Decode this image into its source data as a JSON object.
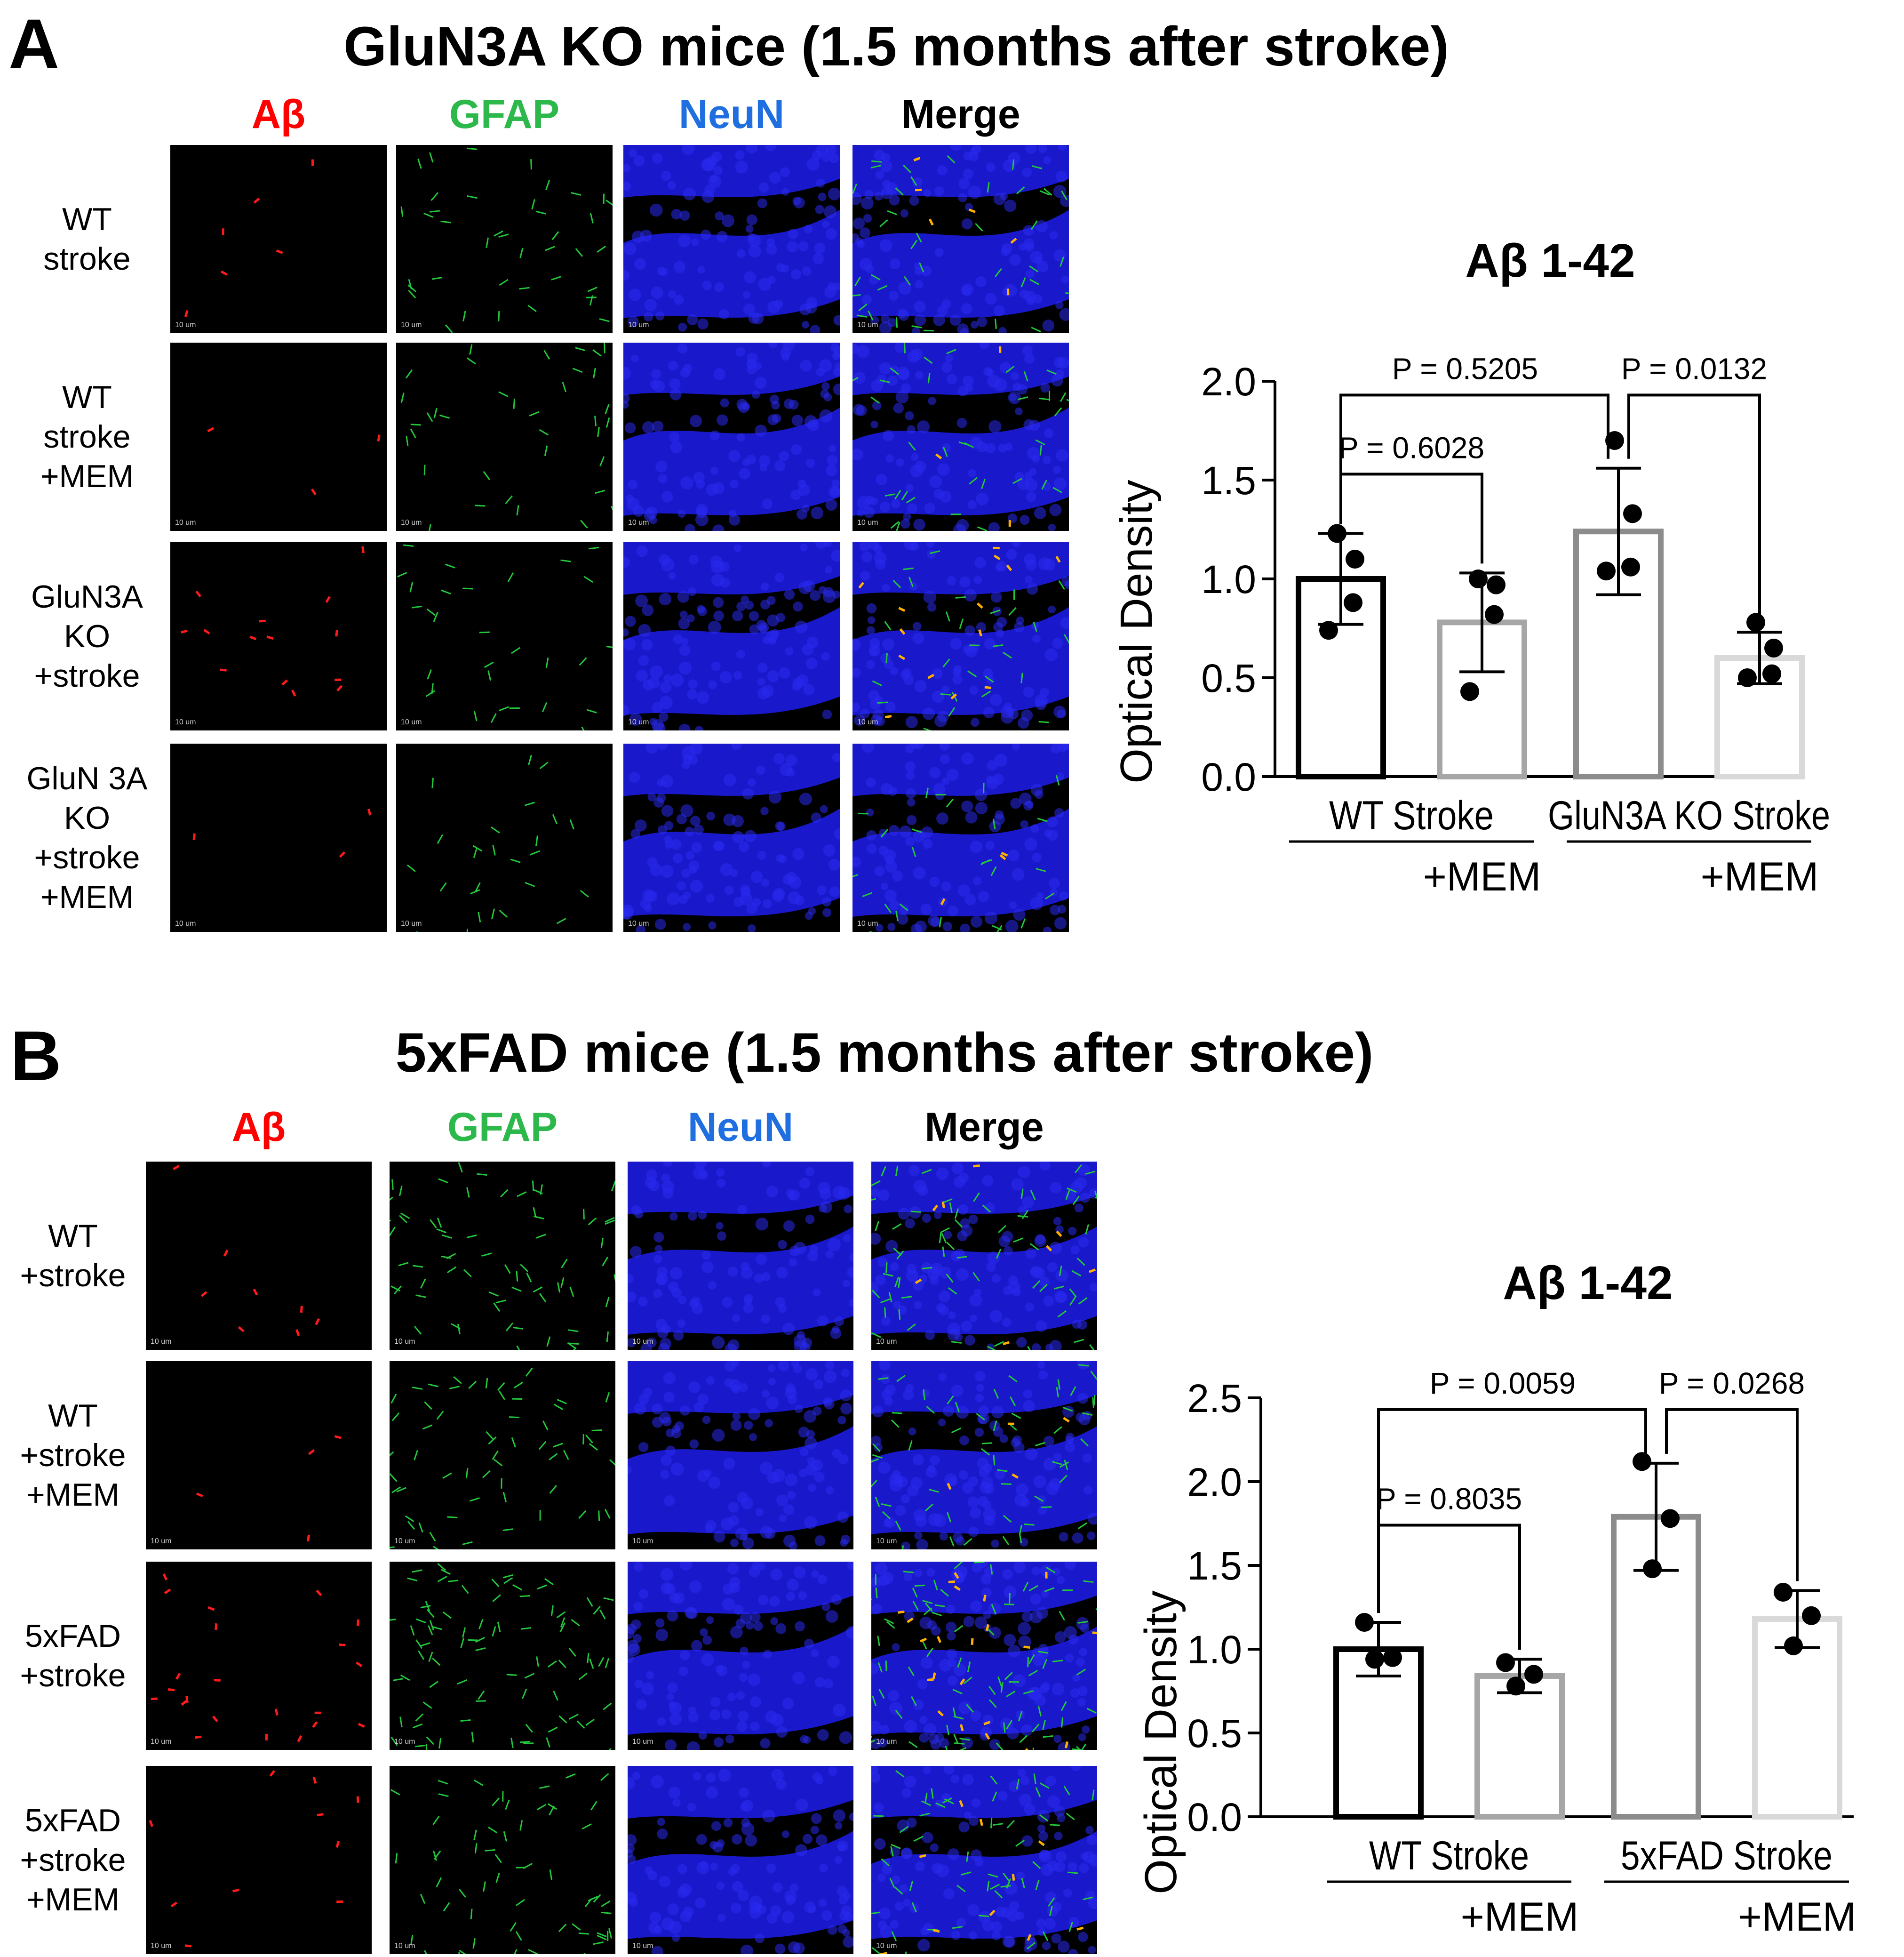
{
  "panels": [
    {
      "letter": "A",
      "title": "GluN3A KO mice (1.5 months after stroke)",
      "columns": [
        "Aβ",
        "GFAP",
        "NeuN",
        "Merge"
      ],
      "column_colors": [
        "#ff0000",
        "#2db84b",
        "#1f6fe0",
        "#000000"
      ],
      "rows": [
        [
          "WT",
          "stroke"
        ],
        [
          "WT",
          "stroke",
          "+MEM"
        ],
        [
          "GluN3A",
          "KO",
          "+stroke"
        ],
        [
          "GluN 3A",
          "KO",
          "+stroke",
          "+MEM"
        ]
      ],
      "scale_label": "10 um"
    },
    {
      "letter": "B",
      "title": "5xFAD mice (1.5 months after stroke)",
      "columns": [
        "Aβ",
        "GFAP",
        "NeuN",
        "Merge"
      ],
      "column_colors": [
        "#ff0000",
        "#2db84b",
        "#1f6fe0",
        "#000000"
      ],
      "rows": [
        [
          "WT",
          "+stroke"
        ],
        [
          "WT",
          "+stroke",
          "+MEM"
        ],
        [
          "5xFAD",
          "+stroke"
        ],
        [
          "5xFAD",
          "+stroke",
          "+MEM"
        ]
      ],
      "scale_label": "10 um"
    }
  ],
  "chart_data": [
    {
      "type": "bar",
      "title": "Aβ  1-42",
      "ylabel": "Optical Density",
      "ylim": [
        0,
        2.0
      ],
      "yticks": [
        "0.0",
        "0.5",
        "1.0",
        "1.5",
        "2.0"
      ],
      "group_labels": [
        "WT Stroke",
        "GluN3A KO Stroke"
      ],
      "mem_label": "+MEM",
      "bar_colors": [
        "#000000",
        "#a6a6a6",
        "#8c8c8c",
        "#d9d9d9"
      ],
      "series": [
        {
          "mean": 1.0,
          "sd": 0.23,
          "points": [
            1.23,
            1.1,
            0.88,
            0.74
          ]
        },
        {
          "mean": 0.78,
          "sd": 0.25,
          "points": [
            1.0,
            0.97,
            0.82,
            0.43
          ]
        },
        {
          "mean": 1.24,
          "sd": 0.32,
          "points": [
            1.7,
            1.33,
            1.06,
            1.04
          ]
        },
        {
          "mean": 0.6,
          "sd": 0.13,
          "points": [
            0.78,
            0.65,
            0.52,
            0.5
          ]
        }
      ],
      "comparisons": [
        {
          "label": "P = 0.5205",
          "from": 0,
          "to": 2,
          "y": 1.93
        },
        {
          "label": "P = 0.0132",
          "from": 2,
          "to": 3,
          "y": 1.93
        },
        {
          "label": "P = 0.6028",
          "from": 0,
          "to": 1,
          "y": 1.53
        }
      ]
    },
    {
      "type": "bar",
      "title": "Aβ 1-42",
      "ylabel": "Optical Density",
      "ylim": [
        0,
        2.5
      ],
      "yticks": [
        "0.0",
        "0.5",
        "1.0",
        "1.5",
        "2.0",
        "2.5"
      ],
      "group_labels": [
        "WT Stroke",
        "5xFAD Stroke"
      ],
      "mem_label": "+MEM",
      "bar_colors": [
        "#000000",
        "#a6a6a6",
        "#8c8c8c",
        "#d9d9d9"
      ],
      "series": [
        {
          "mean": 1.0,
          "sd": 0.16,
          "points": [
            1.16,
            0.95,
            0.94
          ]
        },
        {
          "mean": 0.84,
          "sd": 0.1,
          "points": [
            0.92,
            0.85,
            0.78
          ]
        },
        {
          "mean": 1.79,
          "sd": 0.32,
          "points": [
            2.12,
            1.78,
            1.48
          ]
        },
        {
          "mean": 1.18,
          "sd": 0.17,
          "points": [
            1.34,
            1.2,
            1.02
          ]
        }
      ],
      "comparisons": [
        {
          "label": "P = 0.0059",
          "from": 0,
          "to": 2,
          "y": 2.43
        },
        {
          "label": "P = 0.0268",
          "from": 2,
          "to": 3,
          "y": 2.43
        },
        {
          "label": "P = 0.8035",
          "from": 0,
          "to": 1,
          "y": 1.74
        }
      ]
    }
  ]
}
